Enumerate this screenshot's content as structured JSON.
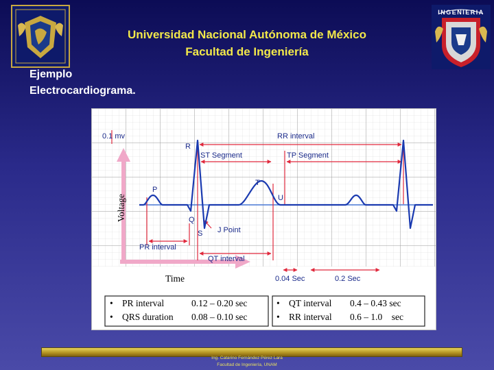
{
  "header": {
    "line1": "Universidad  Nacional Autónoma de México",
    "line2": "Facultad de Ingeniería"
  },
  "subtitle": {
    "line1": "Ejemplo",
    "line2": "Electrocardiograma."
  },
  "logos": {
    "right_text": "INGENIERIA"
  },
  "diagram": {
    "scale_label": "0.1 mv",
    "y_axis": "Voltage",
    "x_axis": "Time",
    "labels": {
      "R": "R",
      "P": "P",
      "Q": "Q",
      "S": "S",
      "T": "T",
      "U": "U",
      "st": "ST Segment",
      "tp": "TP Segment",
      "rr": "RR interval",
      "j": "J Point",
      "pr": "PR interval",
      "qt": "QT interval",
      "t1": "0.04 Sec",
      "t2": "0.2 Sec"
    },
    "table": {
      "left": [
        {
          "name": "PR interval",
          "value": "0.12 – 0.20 sec"
        },
        {
          "name": "QRS duration",
          "value": "0.08 – 0.10 sec"
        }
      ],
      "right": [
        {
          "name": "QT interval",
          "value": "0.4 – 0.43 sec"
        },
        {
          "name": "RR interval",
          "value": "0.6 – 1.0    sec"
        }
      ]
    }
  },
  "footer": {
    "line1": "Ing. Catarino Fernández Pérez Lara",
    "line2": "Facultad de Ingeniería, UNAM"
  },
  "colors": {
    "header_text": "#f2e84a",
    "ecg_trace": "#1a3ab0",
    "markers": "#e0283c",
    "axis_arrow": "#f0a8c8"
  }
}
